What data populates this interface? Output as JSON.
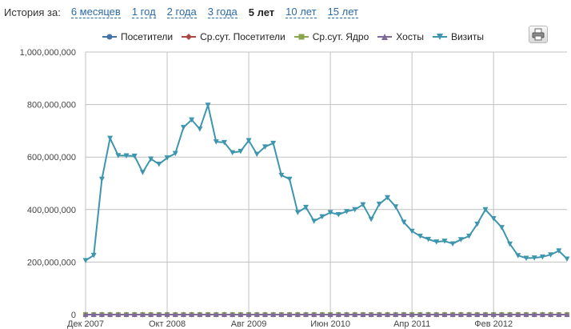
{
  "history": {
    "label": "История за:",
    "periods": [
      {
        "label": "6 месяцев",
        "active": false
      },
      {
        "label": "1 год",
        "active": false
      },
      {
        "label": "2 года",
        "active": false
      },
      {
        "label": "3 года",
        "active": false
      },
      {
        "label": "5 лет",
        "active": true
      },
      {
        "label": "10 лет",
        "active": false
      },
      {
        "label": "15 лет",
        "active": false
      }
    ]
  },
  "legend": [
    {
      "name": "Посетители",
      "color": "#4572a7",
      "marker": "circle"
    },
    {
      "name": "Ср.сут. Посетители",
      "color": "#aa4643",
      "marker": "diamond"
    },
    {
      "name": "Ср.сут. Ядро",
      "color": "#89a54e",
      "marker": "square"
    },
    {
      "name": "Хосты",
      "color": "#80699b",
      "marker": "triangle"
    },
    {
      "name": "Визиты",
      "color": "#3d96ae",
      "marker": "triangle-down"
    }
  ],
  "export_icon": "printer-icon",
  "chart_data": {
    "type": "line",
    "title": "",
    "xlabel": "",
    "ylabel": "",
    "ylim": [
      0,
      1000000000
    ],
    "y_ticks": [
      "0",
      "200,000,000",
      "400,000,000",
      "600,000,000",
      "800,000,000",
      "1,000,000,000"
    ],
    "x_tick_labels": [
      "Дек 2007",
      "Окт 2008",
      "Авг 2009",
      "Июн 2010",
      "Апр 2011",
      "Фев 2012"
    ],
    "x": [
      "2007-12",
      "2008-01",
      "2008-02",
      "2008-03",
      "2008-04",
      "2008-05",
      "2008-06",
      "2008-07",
      "2008-08",
      "2008-09",
      "2008-10",
      "2008-11",
      "2008-12",
      "2009-01",
      "2009-02",
      "2009-03",
      "2009-04",
      "2009-05",
      "2009-06",
      "2009-07",
      "2009-08",
      "2009-09",
      "2009-10",
      "2009-11",
      "2009-12",
      "2010-01",
      "2010-02",
      "2010-03",
      "2010-04",
      "2010-05",
      "2010-06",
      "2010-07",
      "2010-08",
      "2010-09",
      "2010-10",
      "2010-11",
      "2010-12",
      "2011-01",
      "2011-02",
      "2011-03",
      "2011-04",
      "2011-05",
      "2011-06",
      "2011-07",
      "2011-08",
      "2011-09",
      "2011-10",
      "2011-11",
      "2011-12",
      "2012-01",
      "2012-02",
      "2012-03",
      "2012-04",
      "2012-05",
      "2012-06",
      "2012-07",
      "2012-08",
      "2012-09",
      "2012-10",
      "2012-11"
    ],
    "grid": true,
    "legend_position": "top",
    "series": [
      {
        "name": "Посетители",
        "color": "#4572a7",
        "values": [
          0,
          0,
          0,
          0,
          0,
          0,
          0,
          0,
          0,
          0,
          0,
          0,
          0,
          0,
          0,
          0,
          0,
          0,
          0,
          0,
          0,
          0,
          0,
          0,
          0,
          0,
          0,
          0,
          0,
          0,
          0,
          0,
          0,
          0,
          0,
          0,
          0,
          0,
          0,
          0,
          0,
          0,
          0,
          0,
          0,
          0,
          0,
          0,
          0,
          0,
          0,
          0,
          0,
          0,
          0,
          0,
          0,
          0,
          0,
          0
        ]
      },
      {
        "name": "Ср.сут. Посетители",
        "color": "#aa4643",
        "values": [
          0,
          0,
          0,
          0,
          0,
          0,
          0,
          0,
          0,
          0,
          0,
          0,
          0,
          0,
          0,
          0,
          0,
          0,
          0,
          0,
          0,
          0,
          0,
          0,
          0,
          0,
          0,
          0,
          0,
          0,
          0,
          0,
          0,
          0,
          0,
          0,
          0,
          0,
          0,
          0,
          0,
          0,
          0,
          0,
          0,
          0,
          0,
          0,
          0,
          0,
          0,
          0,
          0,
          0,
          0,
          0,
          0,
          0,
          0,
          0
        ]
      },
      {
        "name": "Ср.сут. Ядро",
        "color": "#89a54e",
        "values": [
          0,
          0,
          0,
          0,
          0,
          0,
          0,
          0,
          0,
          0,
          0,
          0,
          0,
          0,
          0,
          0,
          0,
          0,
          0,
          0,
          0,
          0,
          0,
          0,
          0,
          0,
          0,
          0,
          0,
          0,
          0,
          0,
          0,
          0,
          0,
          0,
          0,
          0,
          0,
          0,
          0,
          0,
          0,
          0,
          0,
          0,
          0,
          0,
          0,
          0,
          0,
          0,
          0,
          0,
          0,
          0,
          0,
          0,
          0,
          0
        ]
      },
      {
        "name": "Хосты",
        "color": "#80699b",
        "values": [
          0,
          0,
          0,
          0,
          0,
          0,
          0,
          0,
          0,
          0,
          0,
          0,
          0,
          0,
          0,
          0,
          0,
          0,
          0,
          0,
          0,
          0,
          0,
          0,
          0,
          0,
          0,
          0,
          0,
          0,
          0,
          0,
          0,
          0,
          0,
          0,
          0,
          0,
          0,
          0,
          0,
          0,
          0,
          0,
          0,
          0,
          0,
          0,
          0,
          0,
          0,
          0,
          0,
          0,
          0,
          0,
          0,
          0,
          0,
          0
        ]
      },
      {
        "name": "Визиты",
        "color": "#3d96ae",
        "values": [
          206000000,
          226000000,
          516000000,
          672000000,
          606000000,
          605000000,
          604000000,
          542000000,
          593000000,
          573000000,
          597000000,
          614000000,
          713000000,
          742000000,
          707000000,
          798000000,
          658000000,
          656000000,
          617000000,
          622000000,
          663000000,
          611000000,
          639000000,
          653000000,
          531000000,
          516000000,
          389000000,
          409000000,
          356000000,
          373000000,
          389000000,
          381000000,
          393000000,
          400000000,
          419000000,
          363000000,
          421000000,
          446000000,
          411000000,
          352000000,
          318000000,
          299000000,
          287000000,
          277000000,
          280000000,
          270000000,
          286000000,
          299000000,
          345000000,
          400000000,
          366000000,
          332000000,
          269000000,
          225000000,
          215000000,
          216000000,
          220000000,
          228000000,
          243000000,
          212000000
        ]
      }
    ]
  }
}
